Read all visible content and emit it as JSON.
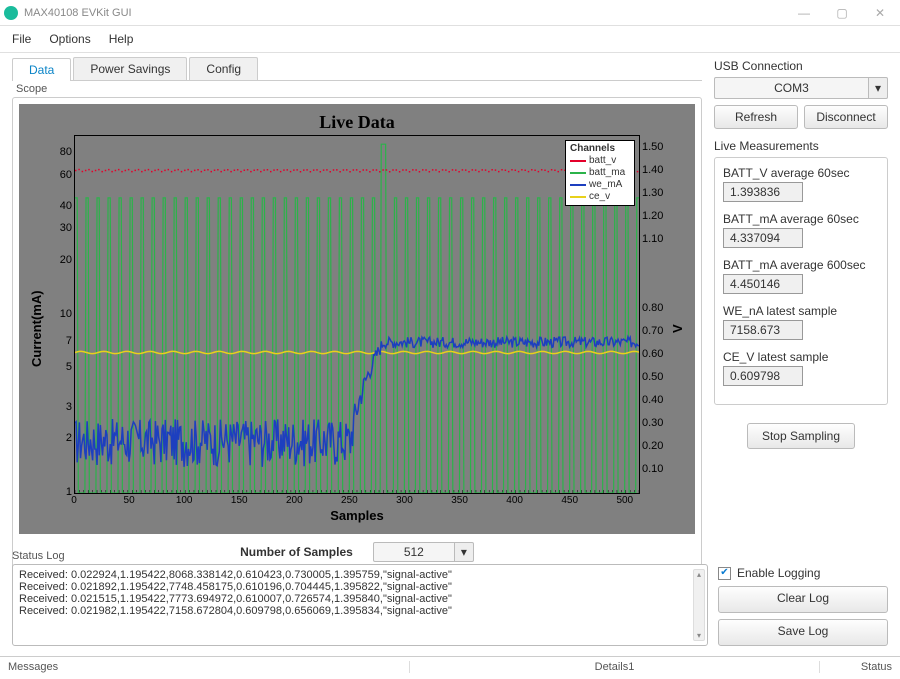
{
  "window": {
    "title": "MAX40108 EVKit GUI",
    "minimize": "—",
    "maximize": "▢",
    "close": "✕"
  },
  "menu": {
    "file": "File",
    "options": "Options",
    "help": "Help"
  },
  "tabs": {
    "data": "Data",
    "power": "Power Savings",
    "config": "Config"
  },
  "scope": {
    "label": "Scope",
    "chart": {
      "type": "line",
      "title": "Live Data",
      "xlabel": "Samples",
      "ylabel_left": "Current(mA)",
      "ylabel_right": "V",
      "xlim": [
        0,
        512
      ],
      "xticks": [
        0,
        50,
        100,
        150,
        200,
        250,
        300,
        350,
        400,
        450,
        500
      ],
      "yticks_left": [
        1,
        2,
        3,
        5,
        7,
        10,
        20,
        30,
        40,
        60,
        80
      ],
      "yticks_right": [
        0.1,
        0.2,
        0.3,
        0.4,
        0.5,
        0.6,
        0.7,
        0.8,
        1.1,
        1.2,
        1.3,
        1.4,
        1.5
      ],
      "yrange_left_log": [
        1,
        100
      ],
      "yrange_right": [
        0,
        1.55
      ],
      "background_color": "#808080",
      "grid_color": "#000000",
      "legend": {
        "title": "Channels",
        "items": [
          {
            "key": "batt_v",
            "label": "batt_v",
            "color": "#e4002b"
          },
          {
            "key": "batt_ma",
            "label": "batt_ma",
            "color": "#2bb34a"
          },
          {
            "key": "we_ma",
            "label": "we_mA",
            "color": "#1d3fbf"
          },
          {
            "key": "ce_v",
            "label": "ce_v",
            "color": "#e8d11b"
          }
        ]
      },
      "series": {
        "batt_v": {
          "color": "#e4002b",
          "width": 1.5,
          "axis": "right",
          "baseline": 1.4,
          "jitter": 0.005
        },
        "batt_ma": {
          "color": "#2bb34a",
          "width": 1.2,
          "axis": "left",
          "low": 1,
          "high": 40,
          "spike_at": 280,
          "spike_val": 90,
          "high_after": 45,
          "period": 10
        },
        "we_ma": {
          "color": "#1d3fbf",
          "width": 1.5,
          "axis": "left",
          "phase1_mean": 2,
          "phase1_noise": 0.6,
          "phase2_start": 280,
          "phase2_mean": 7,
          "phase2_noise": 0.5
        },
        "ce_v": {
          "color": "#e8d11b",
          "width": 1.5,
          "axis": "right",
          "baseline": 0.61,
          "jitter": 0.005
        }
      }
    },
    "numsamples_label": "Number of Samples",
    "numsamples_value": "512",
    "dd_glyph": "▾"
  },
  "usb": {
    "label": "USB Connection",
    "port": "COM3",
    "dd_glyph": "▾",
    "refresh": "Refresh",
    "disconnect": "Disconnect"
  },
  "live": {
    "label": "Live Measurements",
    "items": [
      {
        "label": "BATT_V average 60sec",
        "value": "1.393836"
      },
      {
        "label": "BATT_mA average 60sec",
        "value": "4.337094"
      },
      {
        "label": "BATT_mA average 600sec",
        "value": "4.450146"
      },
      {
        "label": "WE_nA latest sample",
        "value": "7158.673"
      },
      {
        "label": "CE_V latest sample",
        "value": "0.609798"
      }
    ],
    "stop": "Stop Sampling"
  },
  "statuslog": {
    "label": "Status Log",
    "lines": [
      "Received: 0.022924,1.195422,8068.338142,0.610423,0.730005,1.395759,\"signal-active\"",
      "Received: 0.021892,1.195422,7748.458175,0.610196,0.704445,1.395822,\"signal-active\"",
      "Received: 0.021515,1.195422,7773.694972,0.610007,0.726574,1.395840,\"signal-active\"",
      "Received: 0.021982,1.195422,7158.672804,0.609798,0.656069,1.395834,\"signal-active\""
    ],
    "enable": "Enable Logging",
    "clear": "Clear Log",
    "save": "Save Log",
    "scroll_up": "▴",
    "scroll_down": "▾"
  },
  "statusbar": {
    "messages": "Messages",
    "details": "Details1",
    "status": "Status"
  }
}
